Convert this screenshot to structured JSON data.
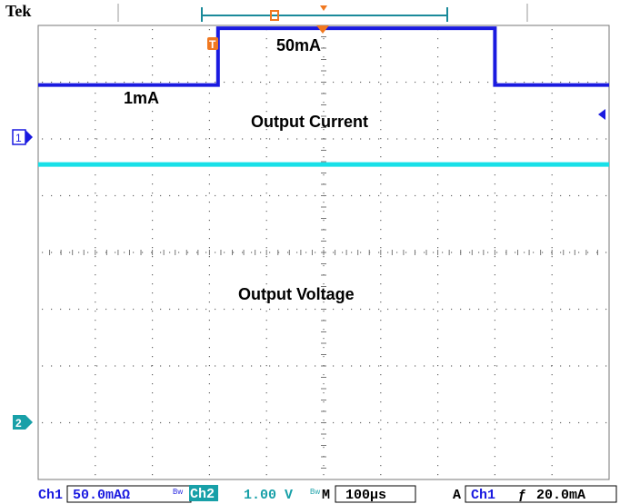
{
  "header": {
    "brand": "Tek"
  },
  "trigger_marker": {
    "glyph": "T",
    "color": "#f07820"
  },
  "annotations": {
    "level_low": "1mA",
    "level_high": "50mA",
    "current_label": "Output Current",
    "voltage_label": "Output Voltage"
  },
  "channels": {
    "ch1_marker": "1",
    "ch2_marker": "2",
    "ch1_color": "#1a1ae0",
    "ch2_color": "#18e0e8"
  },
  "status_bar": {
    "ch1_label": "Ch1",
    "ch1_scale": "50.0mAΩ",
    "ch1_bw": "Bw",
    "ch2_label": "Ch2",
    "ch2_scale": "1.00 V",
    "ch2_bw": "Bw",
    "timebase_prefix": "M",
    "timebase": "100µs",
    "trigger_mode": "A",
    "trigger_source": "Ch1",
    "trigger_slope": "ƒ",
    "trigger_level": "20.0mA"
  },
  "chart_data": {
    "type": "line",
    "x_divisions": 10,
    "y_divisions": 8,
    "series": [
      {
        "values_div": [
          [
            -5.0,
            2.95
          ],
          [
            -1.85,
            2.95
          ],
          [
            -1.85,
            3.95
          ],
          [
            3.0,
            3.95
          ],
          [
            3.0,
            2.95
          ],
          [
            5.0,
            2.95
          ]
        ],
        "color": "#1a1ae0"
      },
      {
        "values_div": [
          [
            -5.0,
            1.55
          ],
          [
            5.0,
            1.55
          ]
        ],
        "color": "#18e0e8"
      }
    ]
  }
}
